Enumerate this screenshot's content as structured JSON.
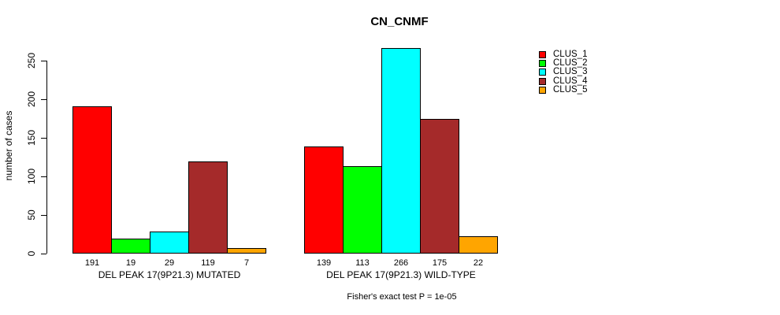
{
  "title": "CN_CNMF",
  "chart_data": {
    "type": "bar",
    "title": "CN_CNMF",
    "ylabel": "number of cases",
    "xlabel": "",
    "ylim": [
      0,
      250
    ],
    "yticks": [
      0,
      50,
      100,
      150,
      200,
      250
    ],
    "grid": false,
    "legend_position": "right",
    "legend": [
      "CLUS_1",
      "CLUS_2",
      "CLUS_3",
      "CLUS_4",
      "CLUS_5"
    ],
    "series_colors": [
      "#FF0000",
      "#00FF00",
      "#00FFFF",
      "#A52A2A",
      "#FFA500"
    ],
    "categories": [
      "DEL PEAK 17(9P21.3) MUTATED",
      "DEL PEAK 17(9P21.3) WILD-TYPE"
    ],
    "groups": [
      {
        "label": "DEL PEAK 17(9P21.3) MUTATED",
        "values": [
          191,
          19,
          29,
          119,
          7
        ]
      },
      {
        "label": "DEL PEAK 17(9P21.3) WILD-TYPE",
        "values": [
          139,
          113,
          266,
          175,
          22
        ]
      }
    ],
    "bar_value_labels_shown": true,
    "annotation": "Fisher's exact test P = 1e-05",
    "colors": {
      "background": "#FFFFFF",
      "axis": "#000000",
      "bar_border": "#000000",
      "text": "#000000"
    }
  }
}
